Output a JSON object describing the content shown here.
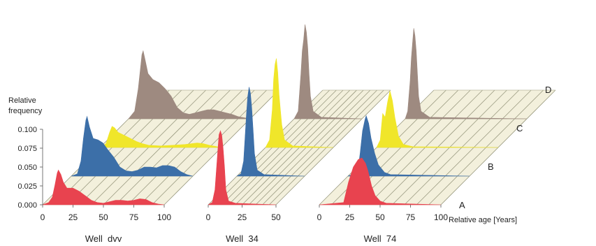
{
  "chart_data": {
    "type": "area",
    "ylabel_lines": [
      "Relative",
      "frequency"
    ],
    "y_ticks": [
      "0.000",
      "0.025",
      "0.050",
      "0.075",
      "0.100"
    ],
    "ylim": [
      0,
      0.1
    ],
    "xlabel": "Relative age [Years]",
    "layers": [
      "A",
      "B",
      "C",
      "D"
    ],
    "layer_colors": {
      "A": "#e8434f",
      "B": "#3c6fa8",
      "C": "#f0e62a",
      "D": "#9e8a80"
    },
    "panels": [
      {
        "name": "Well  dvv",
        "x_ticks": [
          "0",
          "25",
          "50",
          "75",
          "100"
        ],
        "xlim": [
          0,
          100
        ],
        "series": {
          "A": [
            [
              0,
              0
            ],
            [
              5,
              0.003
            ],
            [
              8,
              0.01
            ],
            [
              10,
              0.025
            ],
            [
              12,
              0.042
            ],
            [
              13,
              0.046
            ],
            [
              15,
              0.04
            ],
            [
              17,
              0.03
            ],
            [
              20,
              0.022
            ],
            [
              25,
              0.022
            ],
            [
              30,
              0.018
            ],
            [
              35,
              0.012
            ],
            [
              40,
              0.006
            ],
            [
              45,
              0.003
            ],
            [
              50,
              0.002
            ],
            [
              55,
              0.004
            ],
            [
              60,
              0.006
            ],
            [
              65,
              0.006
            ],
            [
              70,
              0.005
            ],
            [
              75,
              0.006
            ],
            [
              80,
              0.008
            ],
            [
              85,
              0.007
            ],
            [
              90,
              0.003
            ],
            [
              95,
              0.001
            ],
            [
              100,
              0
            ]
          ],
          "B": [
            [
              0,
              0
            ],
            [
              5,
              0.003
            ],
            [
              8,
              0.02
            ],
            [
              10,
              0.05
            ],
            [
              12,
              0.074
            ],
            [
              13,
              0.079
            ],
            [
              15,
              0.065
            ],
            [
              18,
              0.05
            ],
            [
              22,
              0.048
            ],
            [
              26,
              0.044
            ],
            [
              30,
              0.035
            ],
            [
              35,
              0.025
            ],
            [
              40,
              0.012
            ],
            [
              45,
              0.007
            ],
            [
              50,
              0.006
            ],
            [
              55,
              0.008
            ],
            [
              60,
              0.012
            ],
            [
              65,
              0.012
            ],
            [
              70,
              0.011
            ],
            [
              75,
              0.014
            ],
            [
              80,
              0.014
            ],
            [
              85,
              0.012
            ],
            [
              90,
              0.006
            ],
            [
              95,
              0.002
            ],
            [
              100,
              0
            ]
          ],
          "C": [
            [
              0,
              0
            ],
            [
              5,
              0.005
            ],
            [
              8,
              0.02
            ],
            [
              10,
              0.028
            ],
            [
              12,
              0.026
            ],
            [
              15,
              0.02
            ],
            [
              20,
              0.016
            ],
            [
              25,
              0.012
            ],
            [
              30,
              0.008
            ],
            [
              35,
              0.005
            ],
            [
              40,
              0.003
            ],
            [
              50,
              0.002
            ],
            [
              60,
              0.003
            ],
            [
              70,
              0.004
            ],
            [
              80,
              0.006
            ],
            [
              85,
              0.005
            ],
            [
              90,
              0.003
            ],
            [
              100,
              0
            ]
          ],
          "D": [
            [
              0,
              0
            ],
            [
              5,
              0.01
            ],
            [
              8,
              0.04
            ],
            [
              10,
              0.07
            ],
            [
              11,
              0.085
            ],
            [
              12,
              0.09
            ],
            [
              14,
              0.075
            ],
            [
              16,
              0.06
            ],
            [
              20,
              0.052
            ],
            [
              25,
              0.048
            ],
            [
              30,
              0.04
            ],
            [
              35,
              0.03
            ],
            [
              40,
              0.015
            ],
            [
              45,
              0.008
            ],
            [
              50,
              0.006
            ],
            [
              55,
              0.008
            ],
            [
              60,
              0.01
            ],
            [
              65,
              0.012
            ],
            [
              70,
              0.012
            ],
            [
              75,
              0.01
            ],
            [
              80,
              0.008
            ],
            [
              85,
              0.006
            ],
            [
              90,
              0.003
            ],
            [
              100,
              0
            ]
          ]
        }
      },
      {
        "name": "Well  34",
        "x_ticks": [
          "0",
          "25",
          "50"
        ],
        "xlim": [
          0,
          50
        ],
        "series": {
          "A": [
            [
              0,
              0
            ],
            [
              3,
              0.003
            ],
            [
              5,
              0.02
            ],
            [
              7,
              0.07
            ],
            [
              8,
              0.093
            ],
            [
              9,
              0.098
            ],
            [
              10,
              0.092
            ],
            [
              11,
              0.075
            ],
            [
              12,
              0.05
            ],
            [
              13,
              0.02
            ],
            [
              15,
              0.005
            ],
            [
              20,
              0.002
            ],
            [
              50,
              0
            ]
          ],
          "B": [
            [
              0,
              0
            ],
            [
              3,
              0.003
            ],
            [
              5,
              0.02
            ],
            [
              7,
              0.08
            ],
            [
              8,
              0.105
            ],
            [
              9,
              0.118
            ],
            [
              10,
              0.11
            ],
            [
              11,
              0.09
            ],
            [
              12,
              0.06
            ],
            [
              13,
              0.03
            ],
            [
              15,
              0.008
            ],
            [
              20,
              0.002
            ],
            [
              50,
              0
            ]
          ],
          "C": [
            [
              0,
              0
            ],
            [
              3,
              0.01
            ],
            [
              5,
              0.05
            ],
            [
              6,
              0.09
            ],
            [
              7,
              0.11
            ],
            [
              8,
              0.118
            ],
            [
              9,
              0.1
            ],
            [
              10,
              0.07
            ],
            [
              11,
              0.05
            ],
            [
              12,
              0.03
            ],
            [
              14,
              0.01
            ],
            [
              20,
              0.002
            ],
            [
              50,
              0
            ]
          ],
          "D": [
            [
              0,
              0
            ],
            [
              3,
              0.01
            ],
            [
              5,
              0.06
            ],
            [
              6,
              0.09
            ],
            [
              7,
              0.105
            ],
            [
              8,
              0.125
            ],
            [
              9,
              0.115
            ],
            [
              10,
              0.095
            ],
            [
              11,
              0.06
            ],
            [
              12,
              0.03
            ],
            [
              14,
              0.01
            ],
            [
              20,
              0.002
            ],
            [
              50,
              0
            ]
          ]
        }
      },
      {
        "name": "Well  74",
        "x_ticks": [
          "0",
          "25",
          "50",
          "75",
          "100"
        ],
        "xlim": [
          0,
          100
        ],
        "series": {
          "A": [
            [
              0,
              0
            ],
            [
              20,
              0.003
            ],
            [
              24,
              0.03
            ],
            [
              28,
              0.05
            ],
            [
              32,
              0.06
            ],
            [
              35,
              0.062
            ],
            [
              38,
              0.055
            ],
            [
              40,
              0.045
            ],
            [
              43,
              0.025
            ],
            [
              46,
              0.012
            ],
            [
              50,
              0.005
            ],
            [
              55,
              0.002
            ],
            [
              100,
              0
            ]
          ],
          "B": [
            [
              0,
              0
            ],
            [
              8,
              0.005
            ],
            [
              10,
              0.03
            ],
            [
              12,
              0.06
            ],
            [
              14,
              0.075
            ],
            [
              15,
              0.08
            ],
            [
              17,
              0.07
            ],
            [
              19,
              0.05
            ],
            [
              22,
              0.03
            ],
            [
              25,
              0.015
            ],
            [
              30,
              0.005
            ],
            [
              35,
              0.002
            ],
            [
              100,
              0
            ]
          ],
          "C": [
            [
              0,
              0
            ],
            [
              3,
              0.01
            ],
            [
              5,
              0.045
            ],
            [
              7,
              0.04
            ],
            [
              9,
              0.06
            ],
            [
              11,
              0.075
            ],
            [
              13,
              0.062
            ],
            [
              15,
              0.04
            ],
            [
              18,
              0.015
            ],
            [
              22,
              0.004
            ],
            [
              30,
              0.001
            ],
            [
              100,
              0
            ]
          ],
          "D": [
            [
              0,
              0
            ],
            [
              2,
              0.01
            ],
            [
              4,
              0.05
            ],
            [
              5,
              0.08
            ],
            [
              6,
              0.1
            ],
            [
              7,
              0.12
            ],
            [
              8,
              0.11
            ],
            [
              9,
              0.09
            ],
            [
              10,
              0.06
            ],
            [
              11,
              0.03
            ],
            [
              13,
              0.01
            ],
            [
              20,
              0.002
            ],
            [
              100,
              0
            ]
          ]
        }
      }
    ]
  }
}
